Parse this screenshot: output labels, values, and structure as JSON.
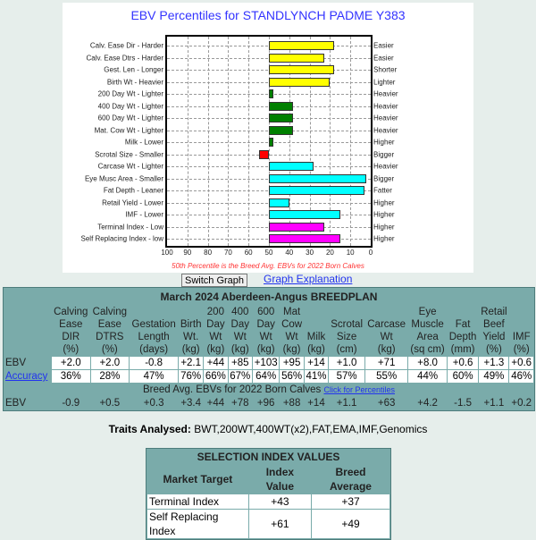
{
  "chart": {
    "title": "EBV Percentiles for STANDLYNCH PADME Y383",
    "footnote": "50th Percentile is the Breed Avg. EBVs for 2022 Born Calves",
    "ticks": [
      "100",
      "90",
      "80",
      "70",
      "60",
      "50",
      "40",
      "30",
      "20",
      "10",
      "0"
    ],
    "colors": {
      "yellow": "#ffff00",
      "green": "#008000",
      "red": "#ff0000",
      "cyan": "#00ffff",
      "magenta": "#ff00ff"
    }
  },
  "chart_data": {
    "type": "bar",
    "orientation": "horizontal",
    "xlim": [
      100,
      0
    ],
    "baseline": 50,
    "grid": true,
    "title": "EBV Percentiles for STANDLYNCH PADME Y383",
    "rows": [
      {
        "left": "Calv. Ease Dir - Harder",
        "right": "Easier",
        "value": 18,
        "color": "yellow"
      },
      {
        "left": "Calv. Ease Dtrs - Harder",
        "right": "Easier",
        "value": 23,
        "color": "yellow"
      },
      {
        "left": "Gest. Len - Longer",
        "right": "Shorter",
        "value": 18,
        "color": "yellow"
      },
      {
        "left": "Birth Wt - Heavier",
        "right": "Lighter",
        "value": 20,
        "color": "yellow"
      },
      {
        "left": "200 Day Wt - Lighter",
        "right": "Heavier",
        "value": 48,
        "color": "green"
      },
      {
        "left": "400 Day Wt - Lighter",
        "right": "Heavier",
        "value": 38,
        "color": "green"
      },
      {
        "left": "600 Day Wt - Lighter",
        "right": "Heavier",
        "value": 38,
        "color": "green"
      },
      {
        "left": "Mat. Cow Wt - Lighter",
        "right": "Heavier",
        "value": 38,
        "color": "green"
      },
      {
        "left": "Milk - Lower",
        "right": "Higher",
        "value": 48,
        "color": "green"
      },
      {
        "left": "Scrotal Size - Smaller",
        "right": "Bigger",
        "value": 55,
        "color": "red"
      },
      {
        "left": "Carcase Wt - Lighter",
        "right": "Heavier",
        "value": 28,
        "color": "cyan"
      },
      {
        "left": "Eye Musc Area - Smaller",
        "right": "Bigger",
        "value": 2,
        "color": "cyan"
      },
      {
        "left": "Fat Depth - Leaner",
        "right": "Fatter",
        "value": 3,
        "color": "cyan"
      },
      {
        "left": "Retail Yield - Lower",
        "right": "Higher",
        "value": 40,
        "color": "cyan"
      },
      {
        "left": "IMF - Lower",
        "right": "Higher",
        "value": 15,
        "color": "cyan"
      },
      {
        "left": "Terminal Index - Low",
        "right": "Higher",
        "value": 23,
        "color": "magenta"
      },
      {
        "left": "Self Replacing Index - low",
        "right": "Higher",
        "value": 15,
        "color": "magenta"
      }
    ]
  },
  "buttons": {
    "switch": "Switch Graph",
    "explain": "Graph Explanation"
  },
  "table": {
    "title": "March 2024 Aberdeen-Angus BREEDPLAN",
    "headers": [
      [
        "Calving",
        "Ease",
        "DIR",
        "(%)"
      ],
      [
        "Calving",
        "Ease",
        "DTRS",
        "(%)"
      ],
      [
        "Gestation",
        "Length",
        "(days)"
      ],
      [
        "Birth",
        "Wt.",
        "(kg)"
      ],
      [
        "200",
        "Day",
        "Wt",
        "(kg)"
      ],
      [
        "400",
        "Day",
        "Wt",
        "(kg)"
      ],
      [
        "600",
        "Day",
        "Wt",
        "(kg)"
      ],
      [
        "Mat",
        "Cow",
        "Wt",
        "(kg)"
      ],
      [
        "Milk",
        "(kg)"
      ],
      [
        "Scrotal",
        "Size",
        "(cm)"
      ],
      [
        "Carcase",
        "Wt",
        "(kg)"
      ],
      [
        "Eye",
        "Muscle",
        "Area",
        "(sq cm)"
      ],
      [
        "Fat",
        "Depth",
        "(mm)"
      ],
      [
        "Retail",
        "Beef",
        "Yield",
        "(%)"
      ],
      [
        "IMF",
        "(%)"
      ]
    ],
    "ebv_label": "EBV",
    "ebv": [
      "+2.0",
      "+2.0",
      "-0.8",
      "+2.1",
      "+44",
      "+85",
      "+103",
      "+95",
      "+14",
      "+1.0",
      "+71",
      "+8.0",
      "+0.6",
      "+1.3",
      "+0.6"
    ],
    "accuracy_label": "Accuracy",
    "accuracy": [
      "36%",
      "28%",
      "47%",
      "76%",
      "66%",
      "67%",
      "64%",
      "56%",
      "41%",
      "57%",
      "55%",
      "44%",
      "60%",
      "49%",
      "46%"
    ],
    "breed_avg_title": "Breed Avg. EBVs for 2022 Born Calves",
    "percentiles_link": "Click for Percentiles",
    "breed_ebv_label": "EBV",
    "breed_ebv": [
      "-0.9",
      "+0.5",
      "+0.3",
      "+3.4",
      "+44",
      "+78",
      "+96",
      "+88",
      "+14",
      "+1.1",
      "+63",
      "+4.2",
      "-1.5",
      "+1.1",
      "+0.2"
    ]
  },
  "traits": {
    "label": "Traits Analysed:",
    "value": " BWT,200WT,400WT(x2),FAT,EMA,IMF,Genomics"
  },
  "selection": {
    "title": "SELECTION INDEX VALUES",
    "headers": [
      "Market Target",
      "Index Value",
      "Breed Average"
    ],
    "rows": [
      [
        "Terminal Index",
        "+43",
        "+37"
      ],
      [
        "Self Replacing Index",
        "+61",
        "+49"
      ]
    ]
  }
}
